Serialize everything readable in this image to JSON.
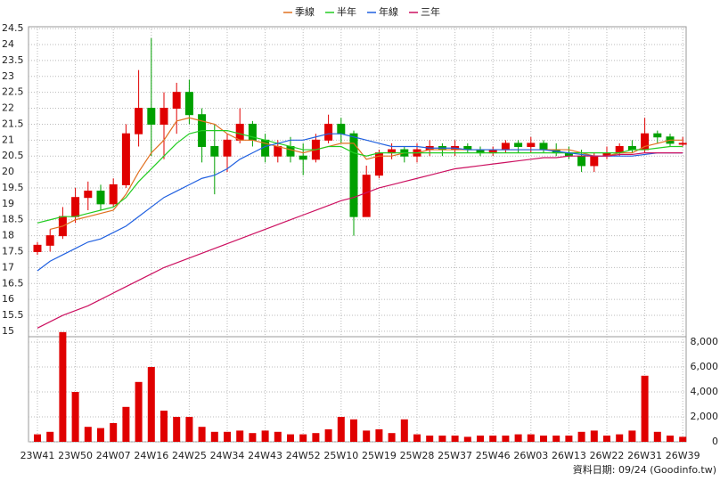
{
  "chart_data": [
    {
      "type": "candlestick",
      "categories": [
        "23W41",
        null,
        null,
        "23W50",
        null,
        null,
        "24W07",
        null,
        null,
        "24W16",
        null,
        null,
        "24W25",
        null,
        null,
        "24W34",
        null,
        null,
        "24W43",
        null,
        null,
        "24W52",
        null,
        null,
        "25W10",
        null,
        null,
        "25W19",
        null,
        null,
        "25W28",
        null,
        null,
        "25W37",
        null,
        null,
        "25W46",
        null,
        null,
        "26W03",
        null,
        null,
        "26W13",
        null,
        null,
        "26W22",
        null,
        null,
        "26W31",
        null,
        null,
        "26W39"
      ],
      "open": [
        17.5,
        17.7,
        18.0,
        18.6,
        19.2,
        19.4,
        19.0,
        19.6,
        21.2,
        22.0,
        21.5,
        22.0,
        22.5,
        21.8,
        20.8,
        20.5,
        21.0,
        21.5,
        21.0,
        20.5,
        20.8,
        20.5,
        20.4,
        21.0,
        21.5,
        21.2,
        18.6,
        19.9,
        20.6,
        20.7,
        20.5,
        20.7,
        20.8,
        20.7,
        20.8,
        20.7,
        20.6,
        20.7,
        20.9,
        20.8,
        20.9,
        20.7,
        20.6,
        20.5,
        20.2,
        20.5,
        20.6,
        20.8,
        20.7,
        21.2,
        21.1,
        20.9
      ],
      "high": [
        17.8,
        18.2,
        18.9,
        19.5,
        19.7,
        19.6,
        19.8,
        21.5,
        23.2,
        24.2,
        22.5,
        22.8,
        22.9,
        22.0,
        21.5,
        21.2,
        22.0,
        21.6,
        21.2,
        21.0,
        21.1,
        20.9,
        21.2,
        21.8,
        21.7,
        21.3,
        20.2,
        20.7,
        20.9,
        20.8,
        20.9,
        21.0,
        20.9,
        21.0,
        20.9,
        20.8,
        20.8,
        21.0,
        21.0,
        21.1,
        21.0,
        20.9,
        20.8,
        20.7,
        20.6,
        20.8,
        20.9,
        21.0,
        21.7,
        21.3,
        21.2,
        21.1
      ],
      "low": [
        17.4,
        17.5,
        17.9,
        18.4,
        18.8,
        18.8,
        18.9,
        19.5,
        20.8,
        20.5,
        20.4,
        21.2,
        21.5,
        20.3,
        19.3,
        20.0,
        20.9,
        20.8,
        20.3,
        20.3,
        20.3,
        19.9,
        20.3,
        20.9,
        20.9,
        18.0,
        18.6,
        19.8,
        20.4,
        20.3,
        20.3,
        20.5,
        20.5,
        20.5,
        20.6,
        20.5,
        20.5,
        20.6,
        20.6,
        20.6,
        20.6,
        20.5,
        20.4,
        20.0,
        20.0,
        20.4,
        20.5,
        20.6,
        20.6,
        20.9,
        20.8,
        20.8
      ],
      "close": [
        17.7,
        18.0,
        18.6,
        19.2,
        19.4,
        19.0,
        19.6,
        21.2,
        22.0,
        21.5,
        22.0,
        22.5,
        21.8,
        20.8,
        20.5,
        21.0,
        21.5,
        21.0,
        20.5,
        20.8,
        20.5,
        20.4,
        21.0,
        21.5,
        21.2,
        18.6,
        19.9,
        20.6,
        20.7,
        20.5,
        20.7,
        20.8,
        20.7,
        20.8,
        20.7,
        20.6,
        20.7,
        20.9,
        20.8,
        20.9,
        20.7,
        20.6,
        20.5,
        20.2,
        20.5,
        20.6,
        20.8,
        20.7,
        21.2,
        21.1,
        20.9,
        20.9
      ],
      "up_color": "#e00000",
      "down_color": "#00a000",
      "series": [
        {
          "name": "季線",
          "color": "#e07020",
          "values": [
            null,
            18.2,
            18.3,
            18.5,
            18.6,
            18.7,
            18.8,
            19.3,
            20.0,
            20.6,
            21.0,
            21.6,
            21.7,
            21.6,
            21.5,
            21.2,
            21.0,
            21.0,
            20.9,
            20.8,
            20.7,
            20.6,
            20.7,
            20.8,
            20.9,
            20.9,
            20.4,
            20.5,
            20.5,
            20.6,
            20.6,
            20.7,
            20.7,
            20.7,
            20.7,
            20.7,
            20.7,
            20.7,
            20.7,
            20.7,
            20.7,
            20.7,
            20.7,
            20.6,
            20.5,
            20.5,
            20.6,
            20.6,
            20.8,
            20.9,
            21.0,
            21.0
          ]
        },
        {
          "name": "半年",
          "color": "#22cc22",
          "values": [
            18.4,
            18.5,
            18.6,
            18.6,
            18.7,
            18.8,
            18.9,
            19.2,
            19.7,
            20.1,
            20.5,
            20.9,
            21.2,
            21.3,
            21.3,
            21.3,
            21.2,
            21.1,
            21.0,
            20.9,
            20.8,
            20.7,
            20.7,
            20.8,
            20.8,
            20.6,
            20.5,
            20.6,
            20.6,
            20.6,
            20.6,
            20.6,
            20.6,
            20.6,
            20.6,
            20.6,
            20.6,
            20.6,
            20.6,
            20.6,
            20.6,
            20.6,
            20.6,
            20.6,
            20.6,
            20.6,
            20.6,
            20.7,
            20.7,
            20.75,
            20.8,
            20.8
          ]
        },
        {
          "name": "年線",
          "color": "#2060e0",
          "values": [
            16.9,
            17.2,
            17.4,
            17.6,
            17.8,
            17.9,
            18.1,
            18.3,
            18.6,
            18.9,
            19.2,
            19.4,
            19.6,
            19.8,
            19.9,
            20.1,
            20.4,
            20.6,
            20.8,
            20.9,
            21.0,
            21.0,
            21.1,
            21.2,
            21.2,
            21.1,
            21.0,
            20.9,
            20.8,
            20.8,
            20.8,
            20.75,
            20.75,
            20.75,
            20.7,
            20.7,
            20.7,
            20.7,
            20.7,
            20.7,
            20.7,
            20.65,
            20.6,
            20.55,
            20.5,
            20.5,
            20.5,
            20.5,
            20.55,
            20.6,
            20.6,
            20.6
          ]
        },
        {
          "name": "三年",
          "color": "#cc1060",
          "values": [
            15.1,
            15.3,
            15.5,
            15.65,
            15.8,
            16.0,
            16.2,
            16.4,
            16.6,
            16.8,
            17.0,
            17.15,
            17.3,
            17.45,
            17.6,
            17.75,
            17.9,
            18.05,
            18.2,
            18.35,
            18.5,
            18.65,
            18.8,
            18.95,
            19.1,
            19.2,
            19.35,
            19.5,
            19.6,
            19.7,
            19.8,
            19.9,
            20.0,
            20.1,
            20.15,
            20.2,
            20.25,
            20.3,
            20.35,
            20.4,
            20.45,
            20.45,
            20.5,
            20.5,
            20.5,
            20.5,
            20.55,
            20.55,
            20.6,
            20.6,
            20.6,
            20.6
          ]
        }
      ],
      "ylim": [
        14.83,
        24.56
      ],
      "yticks": [
        15,
        15.5,
        16,
        16.5,
        17,
        17.5,
        18,
        18.5,
        19,
        19.5,
        20,
        20.5,
        21,
        21.5,
        22,
        22.5,
        23,
        23.5,
        24,
        24.5
      ],
      "grid": true
    },
    {
      "type": "bar",
      "color": "#e00000",
      "values": [
        600,
        800,
        8800,
        4000,
        1200,
        1100,
        1500,
        2800,
        4800,
        6000,
        2500,
        2000,
        2000,
        1200,
        800,
        800,
        900,
        700,
        900,
        800,
        600,
        600,
        700,
        1000,
        2000,
        1800,
        900,
        1000,
        700,
        1800,
        600,
        500,
        500,
        500,
        400,
        500,
        500,
        500,
        600,
        600,
        500,
        500,
        500,
        800,
        900,
        500,
        600,
        900,
        5300,
        800,
        500,
        400
      ],
      "ylim": [
        0,
        8430
      ],
      "yticks": [
        0,
        {
          "value": 2000,
          "label": "2,000"
        },
        {
          "value": 4000,
          "label": "4,000"
        },
        {
          "value": 6000,
          "label": "6,000"
        },
        {
          "value": 8000,
          "label": "8,000"
        }
      ],
      "grid": true,
      "source": "資料日期: 09/24  (Goodinfo.tw)"
    }
  ]
}
